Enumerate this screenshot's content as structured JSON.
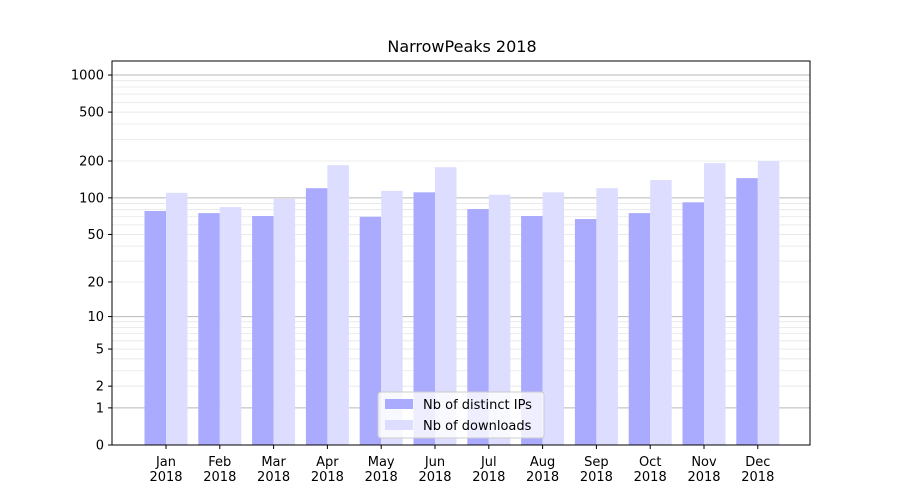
{
  "chart_data": {
    "type": "bar",
    "title": "NarrowPeaks 2018",
    "xlabel": "",
    "ylabel": "",
    "yscale": "symlog",
    "ylim": [
      0,
      1300
    ],
    "yticks": [
      0,
      1,
      2,
      5,
      10,
      20,
      50,
      100,
      200,
      500,
      1000
    ],
    "categories": [
      "Jan\n2018",
      "Feb\n2018",
      "Mar\n2018",
      "Apr\n2018",
      "May\n2018",
      "Jun\n2018",
      "Jul\n2018",
      "Aug\n2018",
      "Sep\n2018",
      "Oct\n2018",
      "Nov\n2018",
      "Dec\n2018"
    ],
    "series": [
      {
        "name": "Nb of distinct IPs",
        "color": "#aaaaff",
        "values": [
          78,
          75,
          71,
          120,
          70,
          111,
          81,
          71,
          67,
          75,
          92,
          145
        ]
      },
      {
        "name": "Nb of downloads",
        "color": "#ddddff",
        "values": [
          110,
          84,
          98,
          185,
          114,
          178,
          106,
          111,
          120,
          140,
          192,
          200
        ]
      }
    ],
    "grid": true,
    "legend": "lower-center"
  }
}
